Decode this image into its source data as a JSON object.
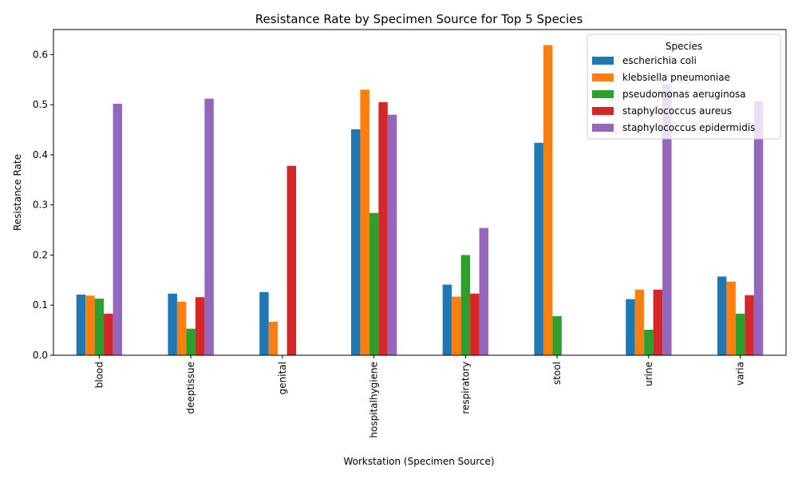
{
  "chart_data": {
    "type": "bar",
    "title": "Resistance Rate by Specimen Source for Top 5 Species",
    "xlabel": "Workstation (Specimen Source)",
    "ylabel": "Resistance Rate",
    "ylim": [
      0,
      0.65
    ],
    "yticks": [
      "0.0",
      "0.1",
      "0.2",
      "0.3",
      "0.4",
      "0.5",
      "0.6"
    ],
    "categories": [
      "blood",
      "deeptissue",
      "genital",
      "hospitalhygiene",
      "respiratory",
      "stool",
      "urine",
      "varia"
    ],
    "legend_title": "Species",
    "legend_position": "top-right",
    "grid": false,
    "series": [
      {
        "name": "escherichia coli",
        "color": "#1f77b4",
        "values": [
          0.121,
          0.123,
          0.126,
          0.451,
          0.141,
          0.424,
          0.112,
          0.157
        ]
      },
      {
        "name": "klebsiella pneumoniae",
        "color": "#ff7f0e",
        "values": [
          0.119,
          0.107,
          0.067,
          0.53,
          0.117,
          0.619,
          0.131,
          0.147
        ]
      },
      {
        "name": "pseudomonas aeruginosa",
        "color": "#2ca02c",
        "values": [
          0.113,
          0.053,
          0,
          0.284,
          0.2,
          0.078,
          0.051,
          0.083
        ]
      },
      {
        "name": "staphylococcus aureus",
        "color": "#d62728",
        "values": [
          0.083,
          0.116,
          0.378,
          0.505,
          0.123,
          0,
          0.131,
          0.12
        ]
      },
      {
        "name": "staphylococcus epidermidis",
        "color": "#9467bd",
        "values": [
          0.502,
          0.512,
          0,
          0.48,
          0.254,
          0,
          0.541,
          0.507
        ]
      }
    ]
  }
}
